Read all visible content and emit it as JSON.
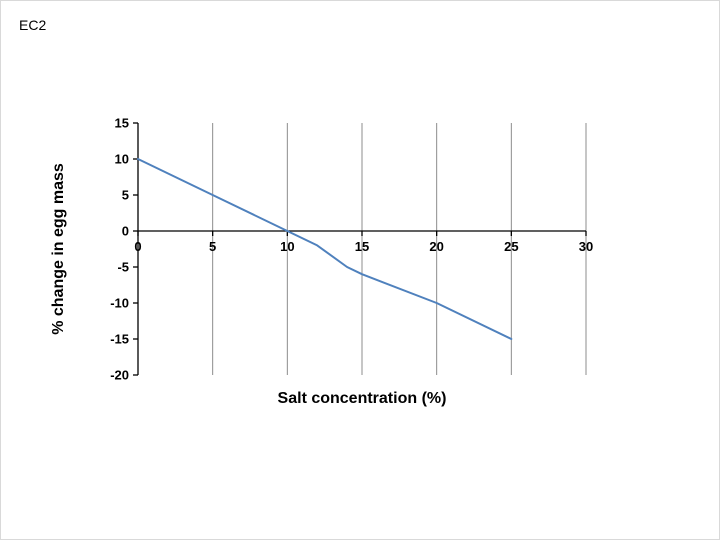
{
  "slide": {
    "label": "EC2"
  },
  "chart_data": {
    "type": "line",
    "title": "",
    "xlabel": "Salt concentration (%)",
    "ylabel": "% change in egg mass",
    "xlim": [
      0,
      30
    ],
    "ylim": [
      -20,
      15
    ],
    "x_ticks": [
      0,
      5,
      10,
      15,
      20,
      25,
      30
    ],
    "y_ticks": [
      -20,
      -15,
      -10,
      -5,
      0,
      5,
      10,
      15
    ],
    "grid": "vertical-only",
    "grid_color": "#8c8c8c",
    "axis_color": "#000000",
    "legend": "none",
    "series": [
      {
        "name": "% change in egg mass",
        "color": "#4f81bd",
        "x": [
          0,
          5,
          10,
          12,
          14,
          15,
          20,
          25
        ],
        "y": [
          10,
          5,
          0,
          -2,
          -5,
          -6,
          -10,
          -15
        ]
      }
    ]
  }
}
